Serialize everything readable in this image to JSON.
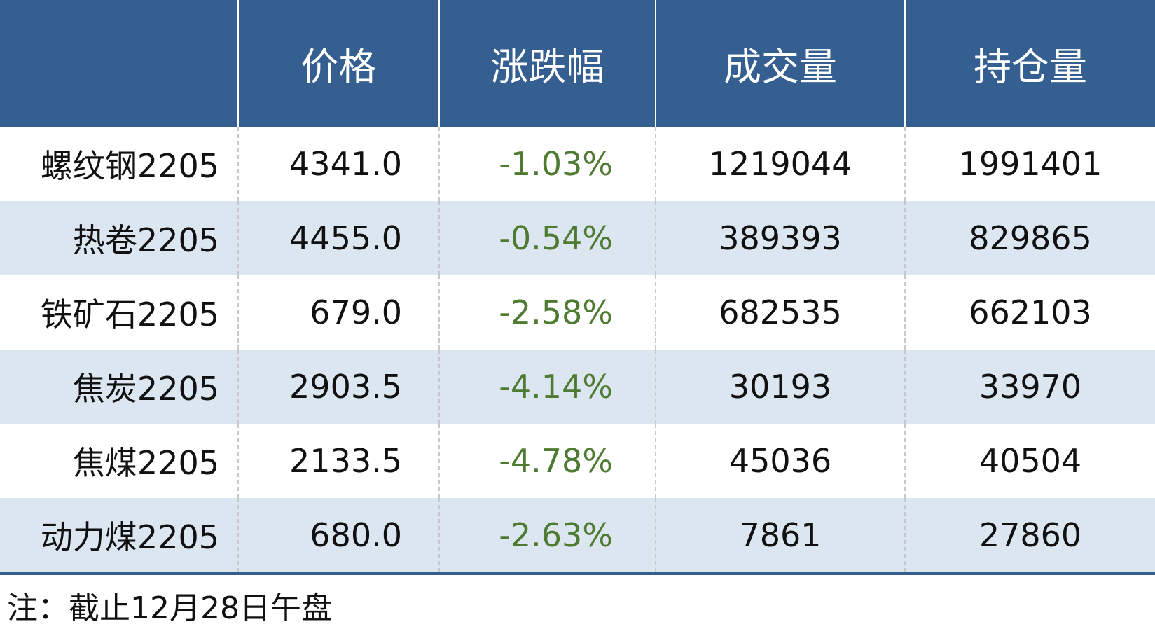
{
  "table": {
    "header": [
      "价格",
      "涨跌幅",
      "成交量",
      "持仓量"
    ],
    "rows": [
      [
        "螺纹钢2205",
        "4341.0",
        "-1.03%",
        "1219044",
        "1991401"
      ],
      [
        "热卷2205",
        "4455.0",
        "-0.54%",
        "389393",
        "829865"
      ],
      [
        "铁矿石2205",
        "679.0",
        "-2.58%",
        "682535",
        "662103"
      ],
      [
        "焦炭2205",
        "2903.5",
        "-4.14%",
        "30193",
        "33970"
      ],
      [
        "焦煤2205",
        "2133.5",
        "-4.78%",
        "45036",
        "40504"
      ],
      [
        "动力煤2205",
        "680.0",
        "-2.63%",
        "7861",
        "27860"
      ]
    ]
  },
  "note": "注：截止12月28日午盘"
}
